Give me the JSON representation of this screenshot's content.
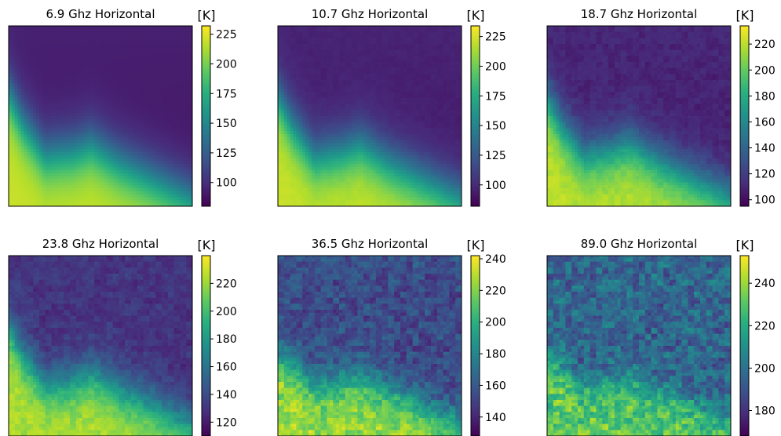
{
  "chart_data": [
    {
      "type": "heatmap",
      "title": "6.9 Ghz Horizontal",
      "colorbar": {
        "label": "[K]",
        "range": [
          80,
          232
        ],
        "ticks": [
          100,
          125,
          150,
          175,
          200,
          225
        ],
        "colormap": "viridis"
      },
      "field": {
        "cold_level": 0.05,
        "warm_level": 0.92,
        "smoothness": 1.0,
        "boundary": [
          [
            0.0,
            0.38
          ],
          [
            0.08,
            0.55
          ],
          [
            0.2,
            0.72
          ],
          [
            0.35,
            0.7
          ],
          [
            0.45,
            0.66
          ],
          [
            0.6,
            0.76
          ],
          [
            0.8,
            0.86
          ],
          [
            1.0,
            0.96
          ]
        ]
      }
    },
    {
      "type": "heatmap",
      "title": "10.7 Ghz Horizontal",
      "colorbar": {
        "label": "[K]",
        "range": [
          82,
          234
        ],
        "ticks": [
          100,
          125,
          150,
          175,
          200,
          225
        ],
        "colormap": "viridis"
      },
      "field": {
        "cold_level": 0.06,
        "warm_level": 0.92,
        "smoothness": 0.95,
        "boundary": [
          [
            0.0,
            0.4
          ],
          [
            0.08,
            0.56
          ],
          [
            0.2,
            0.73
          ],
          [
            0.35,
            0.7
          ],
          [
            0.45,
            0.66
          ],
          [
            0.6,
            0.76
          ],
          [
            0.8,
            0.86
          ],
          [
            1.0,
            0.96
          ]
        ]
      }
    },
    {
      "type": "heatmap",
      "title": "18.7 Ghz Horizontal",
      "colorbar": {
        "label": "[K]",
        "range": [
          95,
          234
        ],
        "ticks": [
          100,
          120,
          140,
          160,
          180,
          200,
          220
        ],
        "colormap": "viridis"
      },
      "field": {
        "cold_level": 0.07,
        "warm_level": 0.9,
        "smoothness": 0.85,
        "boundary": [
          [
            0.0,
            0.4
          ],
          [
            0.08,
            0.56
          ],
          [
            0.2,
            0.72
          ],
          [
            0.35,
            0.69
          ],
          [
            0.45,
            0.65
          ],
          [
            0.6,
            0.75
          ],
          [
            0.8,
            0.85
          ],
          [
            1.0,
            0.95
          ]
        ]
      }
    },
    {
      "type": "heatmap",
      "title": "23.8 Ghz Horizontal",
      "colorbar": {
        "label": "[K]",
        "range": [
          110,
          240
        ],
        "ticks": [
          120,
          140,
          160,
          180,
          200,
          220
        ],
        "colormap": "viridis"
      },
      "field": {
        "cold_level": 0.12,
        "warm_level": 0.88,
        "smoothness": 0.75,
        "boundary": [
          [
            0.0,
            0.4
          ],
          [
            0.08,
            0.56
          ],
          [
            0.2,
            0.72
          ],
          [
            0.35,
            0.7
          ],
          [
            0.45,
            0.65
          ],
          [
            0.6,
            0.74
          ],
          [
            0.8,
            0.84
          ],
          [
            1.0,
            0.94
          ]
        ]
      }
    },
    {
      "type": "heatmap",
      "title": "36.5 Ghz Horizontal",
      "colorbar": {
        "label": "[K]",
        "range": [
          128,
          242
        ],
        "ticks": [
          140,
          160,
          180,
          200,
          220,
          240
        ],
        "colormap": "viridis"
      },
      "field": {
        "cold_level": 0.2,
        "warm_level": 0.85,
        "smoothness": 0.5,
        "boundary": [
          [
            0.0,
            0.55
          ],
          [
            0.1,
            0.62
          ],
          [
            0.2,
            0.72
          ],
          [
            0.35,
            0.7
          ],
          [
            0.45,
            0.67
          ],
          [
            0.6,
            0.74
          ],
          [
            0.8,
            0.84
          ],
          [
            1.0,
            0.92
          ]
        ]
      }
    },
    {
      "type": "heatmap",
      "title": "89.0 Ghz Horizontal",
      "colorbar": {
        "label": "[K]",
        "range": [
          168,
          253
        ],
        "ticks": [
          180,
          200,
          220,
          240
        ],
        "colormap": "viridis"
      },
      "field": {
        "cold_level": 0.3,
        "warm_level": 0.75,
        "smoothness": 0.3,
        "boundary": [
          [
            0.0,
            0.56
          ],
          [
            0.1,
            0.64
          ],
          [
            0.2,
            0.72
          ],
          [
            0.35,
            0.7
          ],
          [
            0.45,
            0.67
          ],
          [
            0.6,
            0.75
          ],
          [
            0.8,
            0.83
          ],
          [
            1.0,
            0.9
          ]
        ]
      }
    }
  ]
}
